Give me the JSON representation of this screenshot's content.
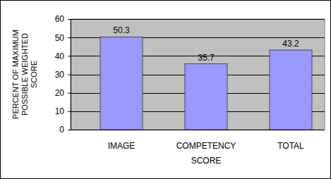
{
  "chart_data": {
    "type": "bar",
    "categories": [
      "IMAGE",
      "COMPETENCY",
      "TOTAL"
    ],
    "values": [
      50.3,
      35.7,
      43.2
    ],
    "color": "#9999ff",
    "ylim": [
      0,
      60
    ],
    "yticks": [
      0,
      10,
      20,
      30,
      40,
      50,
      60
    ],
    "grid": true,
    "data_labels": true,
    "x_label": "SCORE",
    "y_label": "PERCENT OF MAXIMUM POSSIBLE WEIGHTED SCORE"
  }
}
